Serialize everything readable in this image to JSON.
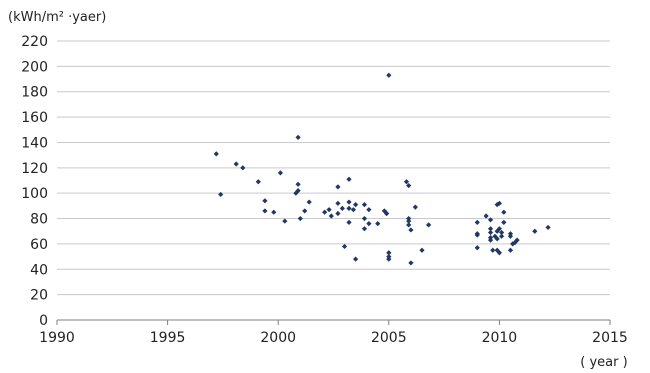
{
  "chart_data": {
    "type": "scatter",
    "title": "",
    "ylabel": "(kWh/m² ·yaer)",
    "xlabel": "( year )",
    "xlim": [
      1990,
      2015
    ],
    "ylim": [
      0,
      220
    ],
    "x_ticks": [
      1990,
      1995,
      2000,
      2005,
      2010,
      2015
    ],
    "y_ticks": [
      0,
      20,
      40,
      60,
      80,
      100,
      120,
      140,
      160,
      180,
      200,
      220
    ],
    "grid": "horizontal",
    "marker_color": "#1f3864",
    "series": [
      {
        "points": [
          [
            1997.2,
            131
          ],
          [
            1997.4,
            99
          ],
          [
            1998.1,
            123
          ],
          [
            1998.4,
            120
          ],
          [
            1999.1,
            109
          ],
          [
            1999.4,
            94
          ],
          [
            1999.4,
            86
          ],
          [
            1999.8,
            85
          ],
          [
            2000.1,
            116
          ],
          [
            2000.3,
            78
          ],
          [
            2000.8,
            100
          ],
          [
            2000.9,
            102
          ],
          [
            2000.9,
            107
          ],
          [
            2000.9,
            144
          ],
          [
            2001.0,
            80
          ],
          [
            2001.2,
            86
          ],
          [
            2001.4,
            93
          ],
          [
            2002.1,
            85
          ],
          [
            2002.3,
            87
          ],
          [
            2002.4,
            82
          ],
          [
            2002.7,
            84
          ],
          [
            2002.7,
            92
          ],
          [
            2002.7,
            105
          ],
          [
            2002.9,
            88
          ],
          [
            2003.0,
            58
          ],
          [
            2003.2,
            77
          ],
          [
            2003.2,
            88
          ],
          [
            2003.2,
            93
          ],
          [
            2003.2,
            111
          ],
          [
            2003.4,
            87
          ],
          [
            2003.5,
            91
          ],
          [
            2003.5,
            48
          ],
          [
            2003.9,
            72
          ],
          [
            2003.9,
            80
          ],
          [
            2003.9,
            91
          ],
          [
            2004.1,
            87
          ],
          [
            2004.1,
            76
          ],
          [
            2004.5,
            76
          ],
          [
            2004.8,
            86
          ],
          [
            2004.9,
            84
          ],
          [
            2004.9,
            84
          ],
          [
            2005.0,
            53
          ],
          [
            2005.0,
            50
          ],
          [
            2005.0,
            48
          ],
          [
            2005.0,
            193
          ],
          [
            2005.8,
            109
          ],
          [
            2005.9,
            106
          ],
          [
            2005.9,
            80
          ],
          [
            2005.9,
            78
          ],
          [
            2005.9,
            75
          ],
          [
            2006.0,
            71
          ],
          [
            2006.0,
            45
          ],
          [
            2006.2,
            89
          ],
          [
            2006.5,
            55
          ],
          [
            2006.8,
            75
          ],
          [
            2009.0,
            77
          ],
          [
            2009.0,
            68
          ],
          [
            2009.0,
            67
          ],
          [
            2009.0,
            57
          ],
          [
            2009.4,
            82
          ],
          [
            2009.6,
            79
          ],
          [
            2009.6,
            72
          ],
          [
            2009.6,
            69
          ],
          [
            2009.6,
            65
          ],
          [
            2009.6,
            63
          ],
          [
            2009.7,
            55
          ],
          [
            2009.8,
            66
          ],
          [
            2009.9,
            91
          ],
          [
            2009.9,
            70
          ],
          [
            2009.9,
            64
          ],
          [
            2009.9,
            55
          ],
          [
            2010.0,
            92
          ],
          [
            2010.0,
            72
          ],
          [
            2010.0,
            53
          ],
          [
            2010.1,
            69
          ],
          [
            2010.1,
            66
          ],
          [
            2010.2,
            85
          ],
          [
            2010.2,
            77
          ],
          [
            2010.5,
            68
          ],
          [
            2010.5,
            66
          ],
          [
            2010.5,
            55
          ],
          [
            2010.6,
            60
          ],
          [
            2010.7,
            61
          ],
          [
            2010.8,
            63
          ],
          [
            2011.6,
            70
          ],
          [
            2012.2,
            73
          ]
        ]
      }
    ]
  }
}
